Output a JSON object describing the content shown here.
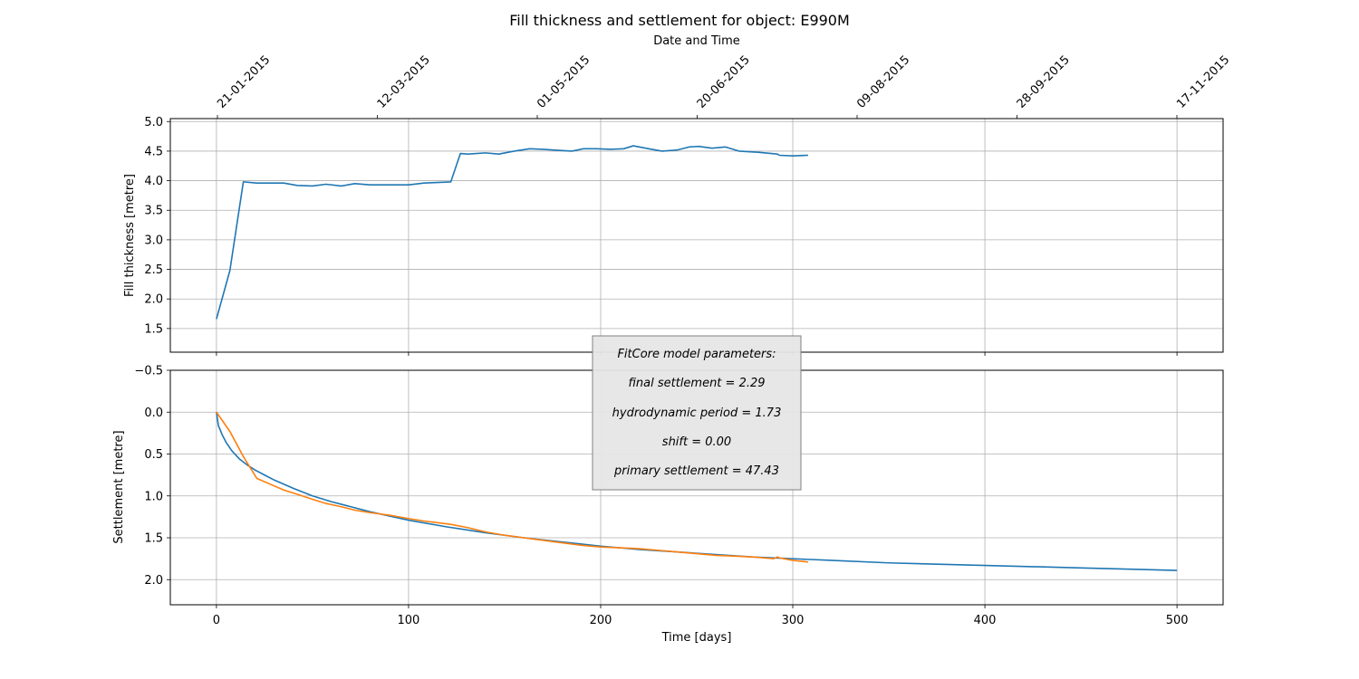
{
  "chart_data": {
    "title": "Fill thickness and settlement for object: E990M",
    "top_axis": {
      "label": "Date and Time",
      "ticks": [
        {
          "day": 0,
          "label": "21-01-2015"
        },
        {
          "day": 50,
          "label": "12-03-2015"
        },
        {
          "day": 100,
          "label": "01-05-2015"
        },
        {
          "day": 150,
          "label": "20-06-2015"
        },
        {
          "day": 200,
          "label": "09-08-2015"
        },
        {
          "day": 250,
          "label": "28-09-2015"
        },
        {
          "day": 300,
          "label": "17-11-2015"
        }
      ]
    },
    "xlabel": "Time [days]",
    "xlim": [
      -24,
      524
    ],
    "xticks": [
      0,
      100,
      200,
      300,
      400,
      500
    ],
    "grid": true,
    "panels": [
      {
        "type": "line",
        "ylabel": "Fill thickness [metre]",
        "ylim": [
          1.1,
          5.05
        ],
        "yticks": [
          1.5,
          2.0,
          2.5,
          3.0,
          3.5,
          4.0,
          4.5,
          5.0
        ],
        "series": [
          {
            "color": "#1f77b4",
            "x": [
              0,
              7,
              14,
              21,
              28,
              35,
              42,
              50,
              57,
              65,
              72,
              80,
              90,
              100,
              108,
              115,
              122,
              127,
              131,
              140,
              147,
              155,
              163,
              170,
              180,
              185,
              191,
              198,
              205,
              212,
              217,
              225,
              232,
              240,
              246,
              251,
              258,
              265,
              272,
              282,
              292,
              293,
              300,
              308
            ],
            "y": [
              1.66,
              2.48,
              3.98,
              3.96,
              3.96,
              3.96,
              3.92,
              3.91,
              3.94,
              3.91,
              3.95,
              3.93,
              3.93,
              3.93,
              3.96,
              3.97,
              3.98,
              4.46,
              4.45,
              4.47,
              4.45,
              4.5,
              4.54,
              4.53,
              4.51,
              4.5,
              4.54,
              4.54,
              4.53,
              4.54,
              4.59,
              4.54,
              4.5,
              4.52,
              4.57,
              4.58,
              4.55,
              4.57,
              4.5,
              4.48,
              4.45,
              4.43,
              4.42,
              4.43
            ]
          }
        ]
      },
      {
        "type": "line",
        "ylabel": "Settlement [metre]",
        "ylim": [
          2.3,
          -0.5
        ],
        "yticks": [
          -0.5,
          0.0,
          0.5,
          1.0,
          1.5,
          2.0
        ],
        "series": [
          {
            "color": "#1f77b4",
            "x": [
              0,
              1,
              3,
              5,
              8,
              12,
              16,
              20,
              25,
              30,
              40,
              50,
              60,
              70,
              80,
              90,
              100,
              120,
              140,
              160,
              180,
              200,
              220,
              240,
              260,
              280,
              300,
              320,
              350,
              400,
              450,
              500
            ],
            "y": [
              0.0,
              0.16,
              0.27,
              0.36,
              0.46,
              0.56,
              0.63,
              0.69,
              0.75,
              0.81,
              0.91,
              1.0,
              1.07,
              1.13,
              1.19,
              1.24,
              1.29,
              1.37,
              1.44,
              1.5,
              1.55,
              1.6,
              1.64,
              1.67,
              1.7,
              1.73,
              1.75,
              1.77,
              1.8,
              1.83,
              1.86,
              1.89
            ]
          },
          {
            "color": "#ff7f0e",
            "x": [
              0,
              7,
              14,
              21,
              28,
              35,
              42,
              50,
              57,
              65,
              72,
              80,
              90,
              100,
              108,
              115,
              122,
              131,
              140,
              150,
              160,
              170,
              180,
              190,
              200,
              210,
              220,
              230,
              240,
              250,
              260,
              270,
              280,
              290,
              292,
              293,
              300,
              308
            ],
            "y": [
              0.0,
              0.23,
              0.53,
              0.79,
              0.86,
              0.93,
              0.98,
              1.04,
              1.09,
              1.13,
              1.17,
              1.2,
              1.23,
              1.27,
              1.3,
              1.32,
              1.34,
              1.38,
              1.43,
              1.47,
              1.5,
              1.53,
              1.56,
              1.59,
              1.61,
              1.62,
              1.63,
              1.65,
              1.67,
              1.69,
              1.71,
              1.72,
              1.73,
              1.75,
              1.73,
              1.74,
              1.77,
              1.79
            ]
          }
        ]
      }
    ],
    "annotation": {
      "placement": "center-overlapping-panels",
      "lines": [
        "FitCore model parameters:",
        "final settlement = 2.29",
        "hydrodynamic period = 1.73",
        "shift = 0.00",
        "primary settlement = 47.43"
      ]
    }
  }
}
